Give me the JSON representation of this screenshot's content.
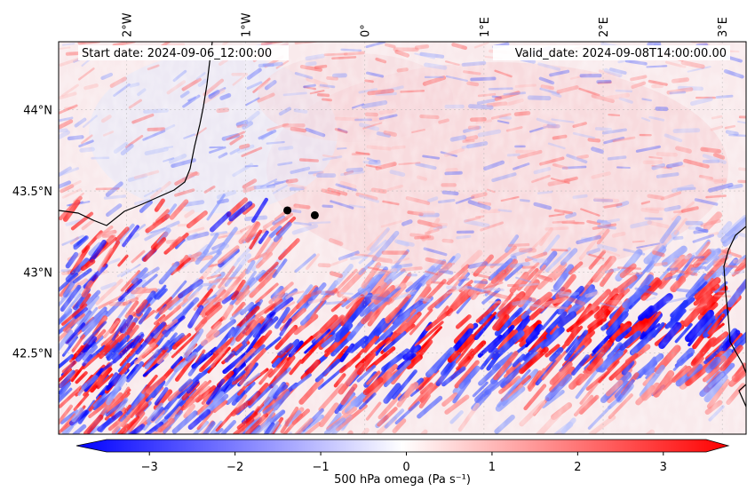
{
  "header": {
    "start_date": "Start date: 2024-09-06_12:00:00",
    "valid_date": "Valid_date: 2024-09-08T14:00:00.00"
  },
  "map": {
    "lon_labels": [
      "2°W",
      "1°W",
      "0°",
      "1°E",
      "2°E",
      "3°E"
    ],
    "lat_labels": [
      "44°N",
      "43.5°N",
      "43°N",
      "42.5°N"
    ],
    "lon_range": [
      -2.57,
      3.2
    ],
    "lat_range": [
      42.0,
      44.42
    ],
    "lon_ticks": [
      -2,
      -1,
      0,
      1,
      2,
      3
    ],
    "lat_ticks": [
      44.0,
      43.5,
      43.0,
      42.5
    ],
    "gridlines": true,
    "markers": [
      {
        "lon": -0.65,
        "lat": 43.38
      },
      {
        "lon": -0.42,
        "lat": 43.35
      }
    ]
  },
  "colorbar": {
    "label": "500 hPa omega (Pa s⁻¹)",
    "tick_labels": [
      "−3",
      "−2",
      "−1",
      "0",
      "1",
      "2",
      "3"
    ],
    "ticks": [
      -3,
      -2,
      -1,
      0,
      1,
      2,
      3
    ],
    "range": [
      -3.5,
      3.5
    ],
    "colormap": "bwr",
    "extend": "both"
  },
  "colors": {
    "negative": "#0000ff",
    "neutral": "#ffffff",
    "positive": "#ff0000",
    "coastline": "#000000"
  }
}
